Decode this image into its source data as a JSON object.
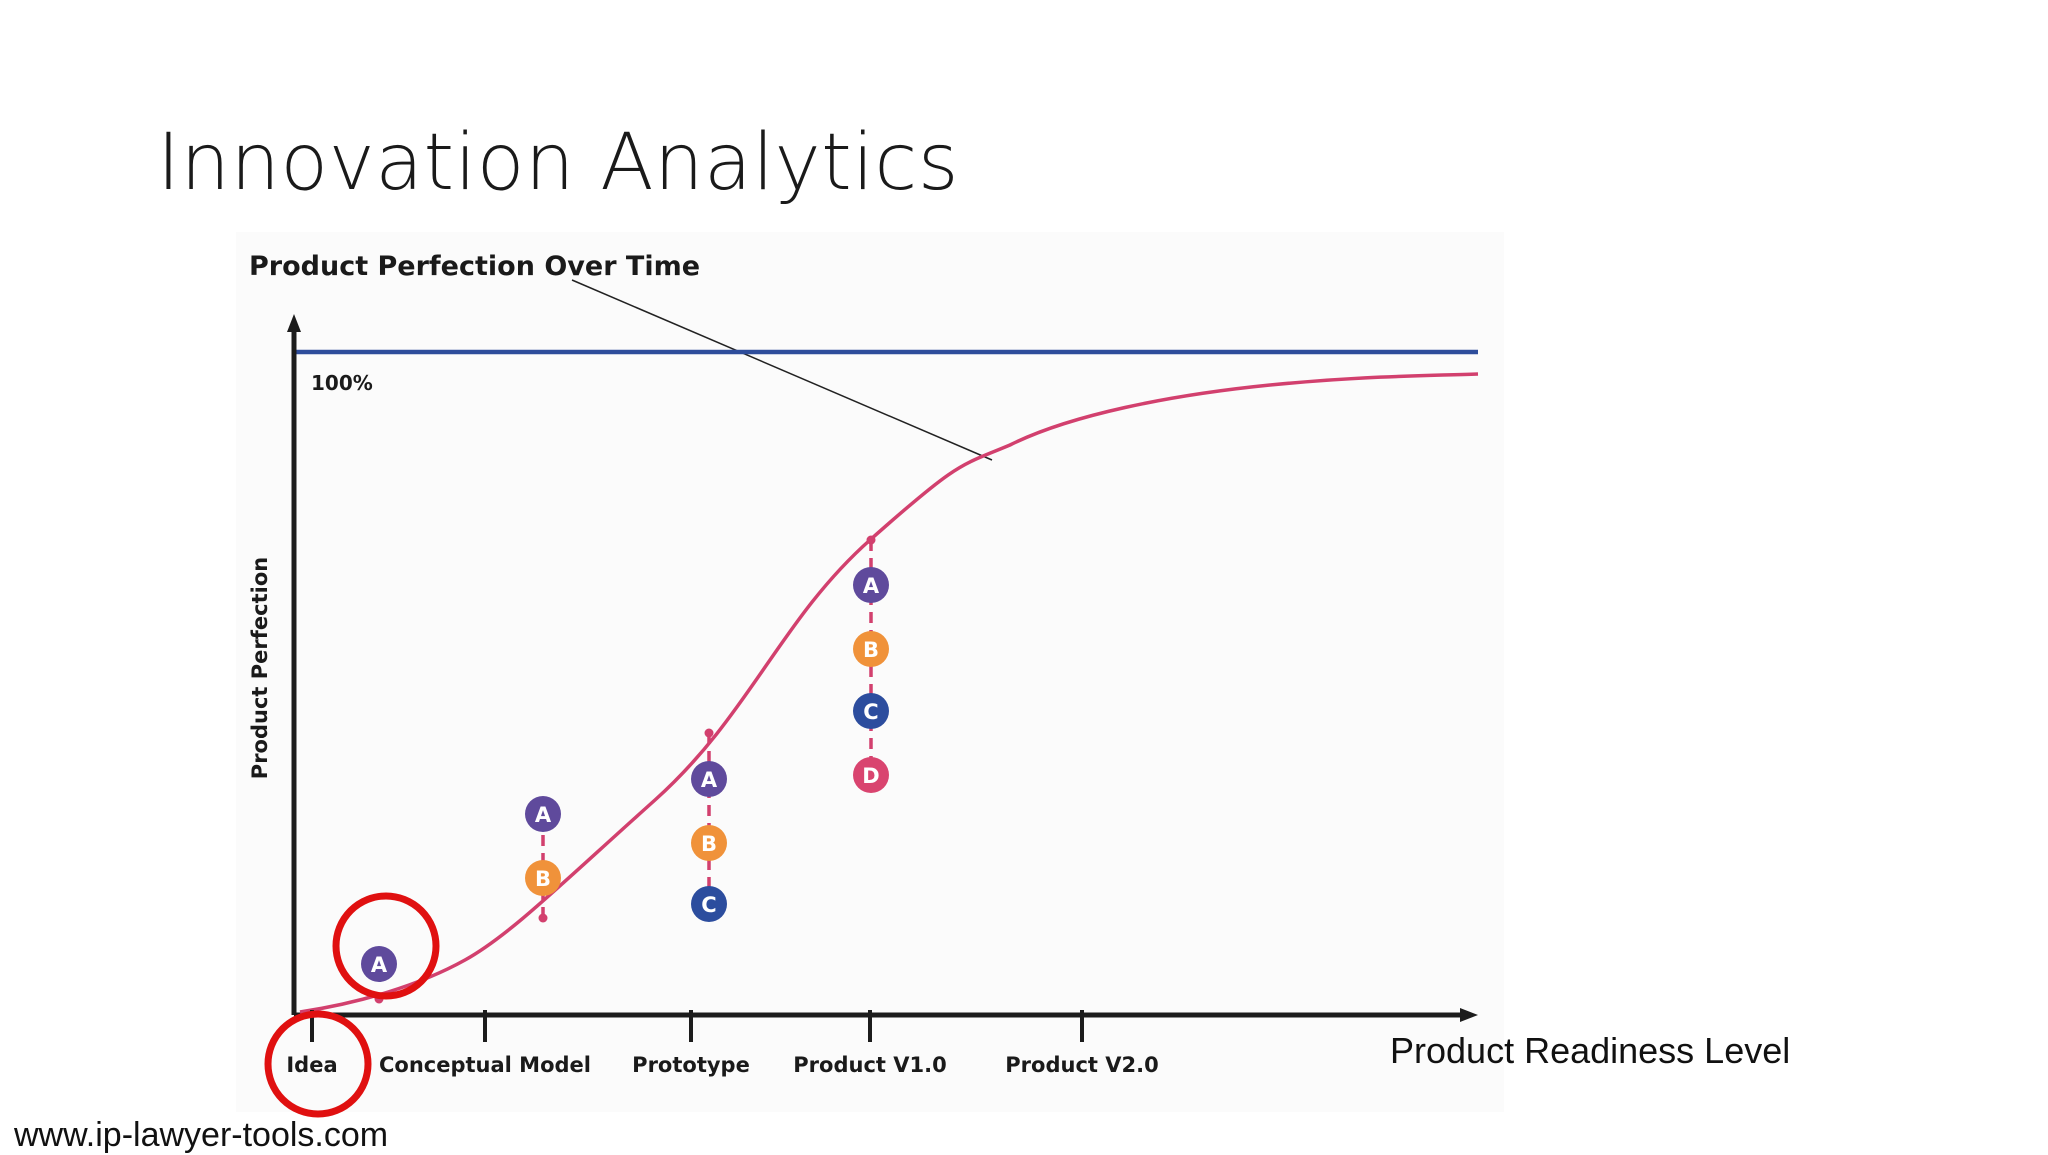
{
  "slide": {
    "title": "Innovation Analytics",
    "footer_url": "www.ip-lawyer-tools.com",
    "x_axis_caption": "Product Readiness Level"
  },
  "diagram": {
    "title": "Product Perfection Over Time",
    "y_axis_label": "Product Perfection",
    "ceiling_label": "100%",
    "stages": [
      "Idea",
      "Conceptual Model",
      "Prototype",
      "Product V1.0",
      "Product V2.0"
    ],
    "stage_markers": [
      {
        "stage": "Idea",
        "badges": [
          "A"
        ],
        "highlighted": true
      },
      {
        "stage": "Conceptual Model",
        "badges": [
          "A",
          "B"
        ]
      },
      {
        "stage": "Prototype",
        "badges": [
          "A",
          "B",
          "C"
        ]
      },
      {
        "stage": "Product V1.0",
        "badges": [
          "A",
          "B",
          "C",
          "D"
        ]
      }
    ]
  },
  "colors": {
    "curve": "#d2406e",
    "ceiling_line": "#2e4d9b",
    "axis": "#1c1c1c",
    "highlight_circle": "#e01010",
    "badge_A": "#5f4a9c",
    "badge_B": "#f0923a",
    "badge_C": "#2c4d9e",
    "badge_D": "#d9446f"
  }
}
